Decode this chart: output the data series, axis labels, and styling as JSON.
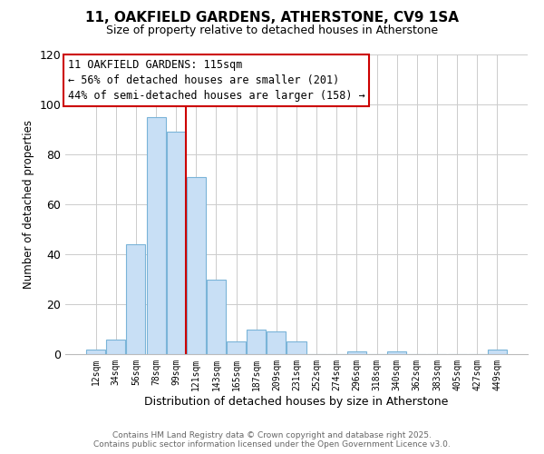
{
  "title": "11, OAKFIELD GARDENS, ATHERSTONE, CV9 1SA",
  "subtitle": "Size of property relative to detached houses in Atherstone",
  "xlabel": "Distribution of detached houses by size in Atherstone",
  "ylabel": "Number of detached properties",
  "bin_labels": [
    "12sqm",
    "34sqm",
    "56sqm",
    "78sqm",
    "99sqm",
    "121sqm",
    "143sqm",
    "165sqm",
    "187sqm",
    "209sqm",
    "231sqm",
    "252sqm",
    "274sqm",
    "296sqm",
    "318sqm",
    "340sqm",
    "362sqm",
    "383sqm",
    "405sqm",
    "427sqm",
    "449sqm"
  ],
  "bin_values": [
    2,
    6,
    44,
    95,
    89,
    71,
    30,
    5,
    10,
    9,
    5,
    0,
    0,
    1,
    0,
    1,
    0,
    0,
    0,
    0,
    2
  ],
  "bar_color": "#c8dff5",
  "bar_edge_color": "#7ab4d8",
  "vline_color": "#cc0000",
  "vline_x_index": 5,
  "annotation_line1": "11 OAKFIELD GARDENS: 115sqm",
  "annotation_line2": "← 56% of detached houses are smaller (201)",
  "annotation_line3": "44% of semi-detached houses are larger (158) →",
  "annotation_box_color": "#ffffff",
  "annotation_box_edge": "#cc0000",
  "ylim": [
    0,
    120
  ],
  "yticks": [
    0,
    20,
    40,
    60,
    80,
    100,
    120
  ],
  "footer_line1": "Contains HM Land Registry data © Crown copyright and database right 2025.",
  "footer_line2": "Contains public sector information licensed under the Open Government Licence v3.0.",
  "background_color": "#ffffff",
  "grid_color": "#cccccc",
  "title_fontsize": 11,
  "subtitle_fontsize": 9,
  "annotation_fontsize": 8.5,
  "ylabel_fontsize": 8.5,
  "xlabel_fontsize": 9,
  "footer_fontsize": 6.5
}
